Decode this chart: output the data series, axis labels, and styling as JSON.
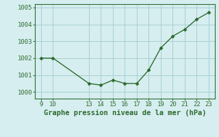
{
  "x": [
    9,
    10,
    13,
    14,
    15,
    16,
    17,
    18,
    19,
    20,
    21,
    22,
    23
  ],
  "y": [
    1002.0,
    1002.0,
    1000.5,
    1000.4,
    1000.7,
    1000.5,
    1000.5,
    1001.3,
    1002.6,
    1003.3,
    1003.7,
    1004.3,
    1004.7
  ],
  "line_color": "#2d6a2d",
  "marker": "D",
  "marker_size": 2.5,
  "line_width": 1.0,
  "bg_color": "#d6eef0",
  "grid_color": "#a8cdd0",
  "xlabel": "Graphe pression niveau de la mer (hPa)",
  "xlabel_fontsize": 7.5,
  "xticks": [
    9,
    10,
    13,
    14,
    15,
    16,
    17,
    18,
    19,
    20,
    21,
    22,
    23
  ],
  "yticks": [
    1000,
    1001,
    1002,
    1003,
    1004,
    1005
  ],
  "ylim": [
    999.6,
    1005.2
  ],
  "xlim": [
    8.5,
    23.5
  ],
  "tick_fontsize": 6.5,
  "tick_color": "#2d6a2d",
  "spine_color": "#2d6a2d"
}
